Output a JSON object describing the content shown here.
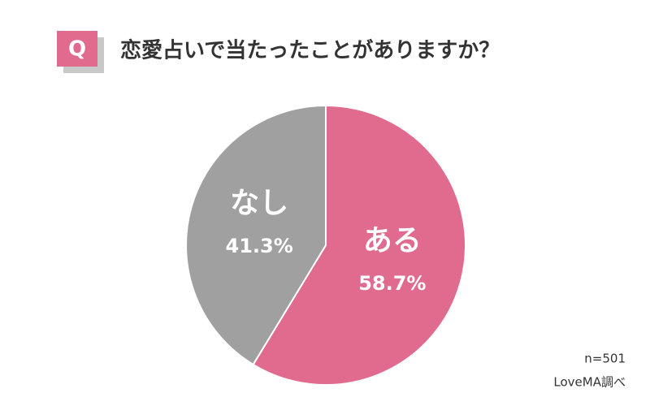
{
  "chart_data": {
    "type": "pie",
    "badge": "Q",
    "title": "恋愛占いで当たったことがありますか？",
    "categories": [
      "ある",
      "なし"
    ],
    "values": [
      58.7,
      41.3
    ],
    "value_labels": [
      "58.7%",
      "41.3%"
    ],
    "colors": [
      "#e06b8f",
      "#a0a0a0"
    ],
    "start_angle": 0,
    "direction": "clockwise",
    "notes": [
      "n=501",
      "LoveMA調べ"
    ]
  }
}
